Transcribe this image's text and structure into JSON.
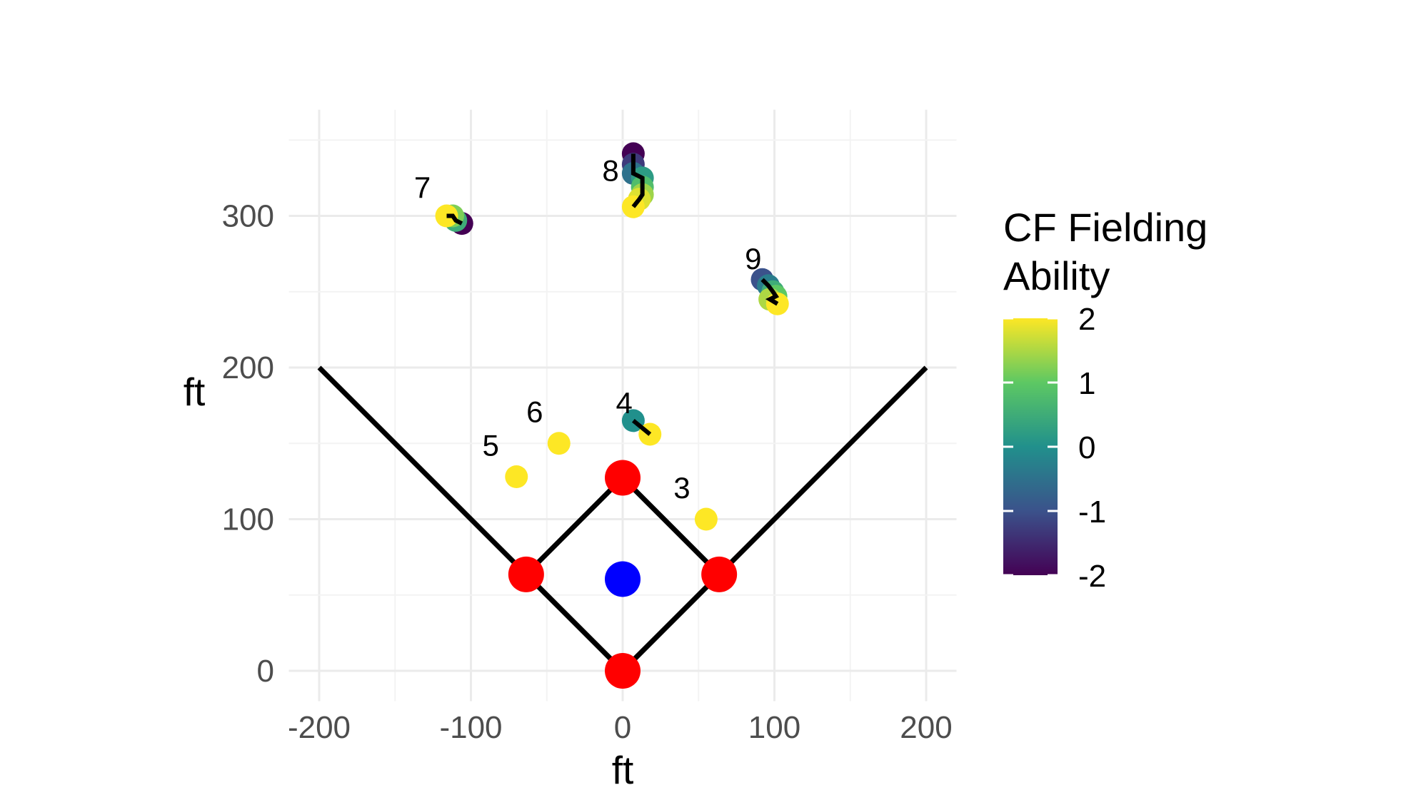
{
  "chart_data": {
    "type": "scatter",
    "title": "",
    "xlabel": "ft",
    "ylabel": "ft",
    "xlim": [
      -220,
      220
    ],
    "ylim": [
      -20,
      370
    ],
    "x_ticks": [
      -200,
      -100,
      0,
      100,
      200
    ],
    "y_ticks": [
      0,
      100,
      200,
      300
    ],
    "grid": true,
    "foul_lines": [
      {
        "points": [
          [
            -200,
            200
          ],
          [
            0,
            0
          ],
          [
            200,
            200
          ]
        ]
      }
    ],
    "infield_diamond": [
      [
        0,
        0
      ],
      [
        63.6,
        63.6
      ],
      [
        0,
        127.3
      ],
      [
        -63.6,
        63.6
      ],
      [
        0,
        0
      ]
    ],
    "bases": [
      {
        "x": 0,
        "y": 0
      },
      {
        "x": 63.6,
        "y": 63.6
      },
      {
        "x": 0,
        "y": 127.3
      },
      {
        "x": -63.6,
        "y": 63.6
      }
    ],
    "pitcher": {
      "x": 0,
      "y": 60.5
    },
    "base_color": "#FF0000",
    "pitcher_color": "#0000FF",
    "fielders": [
      {
        "label": "3",
        "label_x": 39,
        "label_y": 114,
        "points": [
          {
            "x": 55,
            "y": 100,
            "ability": 2
          }
        ]
      },
      {
        "label": "4",
        "label_x": 1,
        "label_y": 170,
        "points": [
          {
            "x": 7,
            "y": 165,
            "ability": 0
          },
          {
            "x": 18,
            "y": 156,
            "ability": 2
          }
        ]
      },
      {
        "label": "5",
        "label_x": -87,
        "label_y": 142,
        "points": [
          {
            "x": -70,
            "y": 128,
            "ability": 2
          }
        ]
      },
      {
        "label": "6",
        "label_x": -58,
        "label_y": 164,
        "points": [
          {
            "x": -42,
            "y": 150,
            "ability": 2
          }
        ]
      },
      {
        "label": "7",
        "label_x": -132,
        "label_y": 312,
        "points": [
          {
            "x": -106,
            "y": 295,
            "ability": -2
          },
          {
            "x": -110,
            "y": 297,
            "ability": 0.5
          },
          {
            "x": -112,
            "y": 300,
            "ability": 1.2
          },
          {
            "x": -116,
            "y": 300,
            "ability": 2
          }
        ]
      },
      {
        "label": "8",
        "label_x": -8,
        "label_y": 323,
        "points": [
          {
            "x": 7,
            "y": 341,
            "ability": -2
          },
          {
            "x": 7,
            "y": 334,
            "ability": -1.3
          },
          {
            "x": 7,
            "y": 328,
            "ability": -0.5
          },
          {
            "x": 13,
            "y": 325,
            "ability": 0.2
          },
          {
            "x": 13,
            "y": 319,
            "ability": 0.8
          },
          {
            "x": 13,
            "y": 314,
            "ability": 1.4
          },
          {
            "x": 11,
            "y": 311,
            "ability": 1.8
          },
          {
            "x": 7,
            "y": 306,
            "ability": 2
          }
        ]
      },
      {
        "label": "9",
        "label_x": 86,
        "label_y": 265,
        "points": [
          {
            "x": 92,
            "y": 258,
            "ability": -1
          },
          {
            "x": 96,
            "y": 254,
            "ability": -0.3
          },
          {
            "x": 99,
            "y": 250,
            "ability": 0.5
          },
          {
            "x": 101,
            "y": 247,
            "ability": 1
          },
          {
            "x": 97,
            "y": 245,
            "ability": 1.5
          },
          {
            "x": 102,
            "y": 242,
            "ability": 2
          }
        ]
      }
    ],
    "legend": {
      "title_lines": [
        "CF Fielding",
        "Ability"
      ],
      "placement": "right",
      "breaks": [
        2,
        1,
        0,
        -1,
        -2
      ],
      "break_labels": [
        "2",
        "1",
        "0",
        "-1",
        "-2"
      ],
      "range": [
        -2,
        2
      ],
      "colors": [
        "#440154",
        "#3B528B",
        "#21908C",
        "#5DC863",
        "#FDE725"
      ]
    }
  }
}
